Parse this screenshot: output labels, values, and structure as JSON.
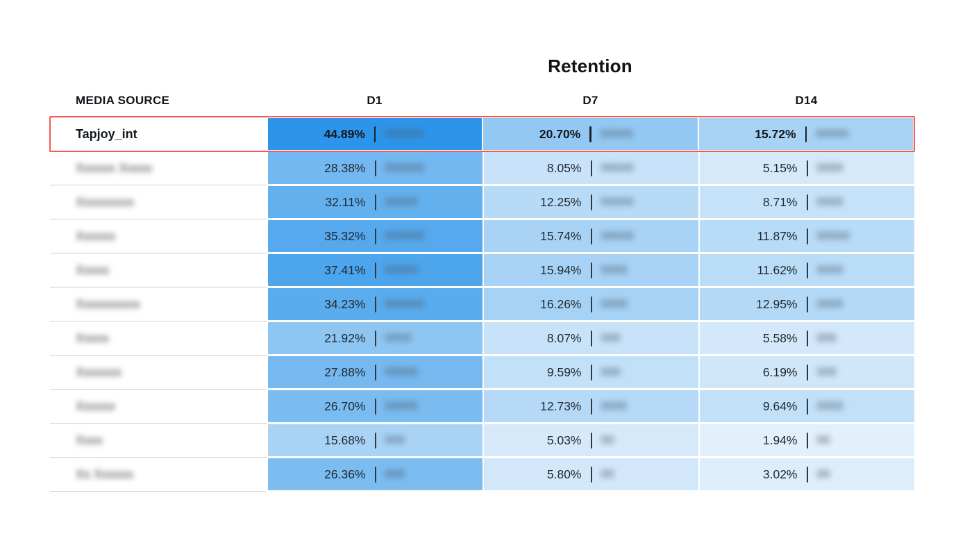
{
  "title": "Retention",
  "header": {
    "media_source": "MEDIA SOURCE",
    "d1": "D1",
    "d7": "D7",
    "d14": "D14"
  },
  "highlight_border_color": "#F15A57",
  "chart_data": {
    "type": "table",
    "subtype": "heatmap-table",
    "title": "Retention",
    "columns": [
      "MEDIA SOURCE",
      "D1",
      "D7",
      "D14"
    ],
    "color_scale": {
      "min_value": 0,
      "max_value": 45,
      "min_color": "#EAF4FC",
      "max_color": "#2D95E9",
      "note": "cell fill interpolates with retention percentage"
    },
    "highlighted_row": "Tapjoy_int",
    "rows": [
      {
        "media_source": "Tapjoy_int",
        "redacted": false,
        "highlighted": true,
        "cells": [
          {
            "pct": "44.89%",
            "value": 44.89,
            "count_blurred": "000000",
            "color": "#2D95E9"
          },
          {
            "pct": "20.70%",
            "value": 20.7,
            "count_blurred": "00000",
            "color": "#93C8F3"
          },
          {
            "pct": "15.72%",
            "value": 15.72,
            "count_blurred": "00000",
            "color": "#A8D3F5"
          }
        ]
      },
      {
        "media_source": "Xxxxxx Xxxxx",
        "redacted": true,
        "highlighted": false,
        "cells": [
          {
            "pct": "28.38%",
            "value": 28.38,
            "count_blurred": "000000",
            "color": "#73B8F0"
          },
          {
            "pct": "8.05%",
            "value": 8.05,
            "count_blurred": "00000",
            "color": "#C8E3F9"
          },
          {
            "pct": "5.15%",
            "value": 5.15,
            "count_blurred": "0000",
            "color": "#D4E9FA"
          }
        ]
      },
      {
        "media_source": "Xxxxxxxxx",
        "redacted": true,
        "highlighted": false,
        "cells": [
          {
            "pct": "32.11%",
            "value": 32.11,
            "count_blurred": "00000",
            "color": "#63B0EE"
          },
          {
            "pct": "12.25%",
            "value": 12.25,
            "count_blurred": "00000",
            "color": "#B7DAF7"
          },
          {
            "pct": "8.71%",
            "value": 8.71,
            "count_blurred": "0000",
            "color": "#C5E2F8"
          }
        ]
      },
      {
        "media_source": "Xxxxxx",
        "redacted": true,
        "highlighted": false,
        "cells": [
          {
            "pct": "35.32%",
            "value": 35.32,
            "count_blurred": "000000",
            "color": "#56A9ED"
          },
          {
            "pct": "15.74%",
            "value": 15.74,
            "count_blurred": "00000",
            "color": "#A8D3F5"
          },
          {
            "pct": "11.87%",
            "value": 11.87,
            "count_blurred": "00000",
            "color": "#B8DBF7"
          }
        ]
      },
      {
        "media_source": "Xxxxx",
        "redacted": true,
        "highlighted": false,
        "cells": [
          {
            "pct": "37.41%",
            "value": 37.41,
            "count_blurred": "00000",
            "color": "#4DA5EC"
          },
          {
            "pct": "15.94%",
            "value": 15.94,
            "count_blurred": "0000",
            "color": "#A7D2F5"
          },
          {
            "pct": "11.62%",
            "value": 11.62,
            "count_blurred": "0000",
            "color": "#B9DCF7"
          }
        ]
      },
      {
        "media_source": "Xxxxxxxxxx",
        "redacted": true,
        "highlighted": false,
        "cells": [
          {
            "pct": "34.23%",
            "value": 34.23,
            "count_blurred": "000000",
            "color": "#5AACED"
          },
          {
            "pct": "16.26%",
            "value": 16.26,
            "count_blurred": "0000",
            "color": "#A6D2F5"
          },
          {
            "pct": "12.95%",
            "value": 12.95,
            "count_blurred": "0000",
            "color": "#B4D9F6"
          }
        ]
      },
      {
        "media_source": "Xxxxx",
        "redacted": true,
        "highlighted": false,
        "cells": [
          {
            "pct": "21.92%",
            "value": 21.92,
            "count_blurred": "0000",
            "color": "#8EC6F3"
          },
          {
            "pct": "8.07%",
            "value": 8.07,
            "count_blurred": "000",
            "color": "#C8E3F9"
          },
          {
            "pct": "5.58%",
            "value": 5.58,
            "count_blurred": "000",
            "color": "#D3E8FA"
          }
        ]
      },
      {
        "media_source": "Xxxxxxx",
        "redacted": true,
        "highlighted": false,
        "cells": [
          {
            "pct": "27.88%",
            "value": 27.88,
            "count_blurred": "00000",
            "color": "#75B9F0"
          },
          {
            "pct": "9.59%",
            "value": 9.59,
            "count_blurred": "000",
            "color": "#C2E0F8"
          },
          {
            "pct": "6.19%",
            "value": 6.19,
            "count_blurred": "000",
            "color": "#D0E7F9"
          }
        ]
      },
      {
        "media_source": "Xxxxxx",
        "redacted": true,
        "highlighted": false,
        "cells": [
          {
            "pct": "26.70%",
            "value": 26.7,
            "count_blurred": "00000",
            "color": "#7ABCF0"
          },
          {
            "pct": "12.73%",
            "value": 12.73,
            "count_blurred": "0000",
            "color": "#B5D9F7"
          },
          {
            "pct": "9.64%",
            "value": 9.64,
            "count_blurred": "0000",
            "color": "#C2E0F8"
          }
        ]
      },
      {
        "media_source": "Xxxx",
        "redacted": true,
        "highlighted": false,
        "cells": [
          {
            "pct": "15.68%",
            "value": 15.68,
            "count_blurred": "000",
            "color": "#A8D3F5"
          },
          {
            "pct": "5.03%",
            "value": 5.03,
            "count_blurred": "00",
            "color": "#D5E9FA"
          },
          {
            "pct": "1.94%",
            "value": 1.94,
            "count_blurred": "00",
            "color": "#E2F0FB"
          }
        ]
      },
      {
        "media_source": "Xx Xxxxxx",
        "redacted": true,
        "highlighted": false,
        "cells": [
          {
            "pct": "26.36%",
            "value": 26.36,
            "count_blurred": "000",
            "color": "#7BBCF1"
          },
          {
            "pct": "5.80%",
            "value": 5.8,
            "count_blurred": "00",
            "color": "#D2E8FA"
          },
          {
            "pct": "3.02%",
            "value": 3.02,
            "count_blurred": "00",
            "color": "#DDEEFB"
          }
        ]
      }
    ]
  }
}
